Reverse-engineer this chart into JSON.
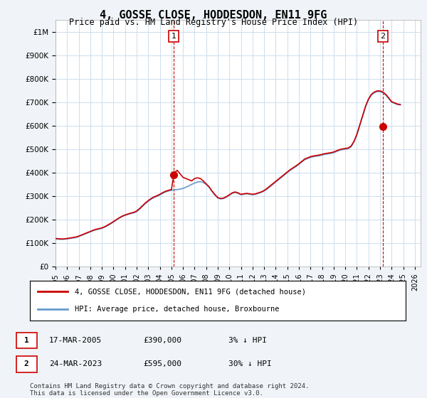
{
  "title": "4, GOSSE CLOSE, HODDESDON, EN11 9FG",
  "subtitle": "Price paid vs. HM Land Registry's House Price Index (HPI)",
  "ylabel_ticks": [
    "£0",
    "£100K",
    "£200K",
    "£300K",
    "£400K",
    "£500K",
    "£600K",
    "£700K",
    "£800K",
    "£900K",
    "£1M"
  ],
  "ytick_values": [
    0,
    100000,
    200000,
    300000,
    400000,
    500000,
    600000,
    700000,
    800000,
    900000,
    1000000
  ],
  "ylim": [
    0,
    1050000
  ],
  "xlim_start": 1995.0,
  "xlim_end": 2026.5,
  "xtick_years": [
    1995,
    1996,
    1997,
    1998,
    1999,
    2000,
    2001,
    2002,
    2003,
    2004,
    2005,
    2006,
    2007,
    2008,
    2009,
    2010,
    2011,
    2012,
    2013,
    2014,
    2015,
    2016,
    2017,
    2018,
    2019,
    2020,
    2021,
    2022,
    2023,
    2024,
    2025,
    2026
  ],
  "hpi_color": "#6699cc",
  "price_color": "#cc0000",
  "grid_color": "#ccddee",
  "background_color": "#f0f4f8",
  "plot_bg_color": "#ffffff",
  "sale1_year": 2005.21,
  "sale1_price": 390000,
  "sale2_year": 2023.23,
  "sale2_price": 595000,
  "legend_label1": "4, GOSSE CLOSE, HODDESDON, EN11 9FG (detached house)",
  "legend_label2": "HPI: Average price, detached house, Broxbourne",
  "table_row1": [
    "1",
    "17-MAR-2005",
    "£390,000",
    "3% ↓ HPI"
  ],
  "table_row2": [
    "2",
    "24-MAR-2023",
    "£595,000",
    "30% ↓ HPI"
  ],
  "footnote": "Contains HM Land Registry data © Crown copyright and database right 2024.\nThis data is licensed under the Open Government Licence v3.0.",
  "hpi_years": [
    1995.0,
    1995.25,
    1995.5,
    1995.75,
    1996.0,
    1996.25,
    1996.5,
    1996.75,
    1997.0,
    1997.25,
    1997.5,
    1997.75,
    1998.0,
    1998.25,
    1998.5,
    1998.75,
    1999.0,
    1999.25,
    1999.5,
    1999.75,
    2000.0,
    2000.25,
    2000.5,
    2000.75,
    2001.0,
    2001.25,
    2001.5,
    2001.75,
    2002.0,
    2002.25,
    2002.5,
    2002.75,
    2003.0,
    2003.25,
    2003.5,
    2003.75,
    2004.0,
    2004.25,
    2004.5,
    2004.75,
    2005.0,
    2005.25,
    2005.5,
    2005.75,
    2006.0,
    2006.25,
    2006.5,
    2006.75,
    2007.0,
    2007.25,
    2007.5,
    2007.75,
    2008.0,
    2008.25,
    2008.5,
    2008.75,
    2009.0,
    2009.25,
    2009.5,
    2009.75,
    2010.0,
    2010.25,
    2010.5,
    2010.75,
    2011.0,
    2011.25,
    2011.5,
    2011.75,
    2012.0,
    2012.25,
    2012.5,
    2012.75,
    2013.0,
    2013.25,
    2013.5,
    2013.75,
    2014.0,
    2014.25,
    2014.5,
    2014.75,
    2015.0,
    2015.25,
    2015.5,
    2015.75,
    2016.0,
    2016.25,
    2016.5,
    2016.75,
    2017.0,
    2017.25,
    2017.5,
    2017.75,
    2018.0,
    2018.25,
    2018.5,
    2018.75,
    2019.0,
    2019.25,
    2019.5,
    2019.75,
    2020.0,
    2020.25,
    2020.5,
    2020.75,
    2021.0,
    2021.25,
    2021.5,
    2021.75,
    2022.0,
    2022.25,
    2022.5,
    2022.75,
    2023.0,
    2023.25,
    2023.5,
    2023.75,
    2024.0,
    2024.25,
    2024.5,
    2024.75
  ],
  "hpi_values": [
    118000,
    117000,
    116000,
    116500,
    118000,
    120000,
    122000,
    124000,
    128000,
    133000,
    138000,
    143000,
    148000,
    153000,
    157000,
    160000,
    163000,
    168000,
    175000,
    182000,
    190000,
    198000,
    206000,
    213000,
    218000,
    222000,
    226000,
    229000,
    234000,
    244000,
    256000,
    268000,
    278000,
    287000,
    294000,
    299000,
    305000,
    312000,
    318000,
    322000,
    325000,
    327000,
    328000,
    330000,
    333000,
    338000,
    344000,
    350000,
    356000,
    360000,
    362000,
    358000,
    350000,
    338000,
    320000,
    305000,
    292000,
    288000,
    290000,
    296000,
    304000,
    312000,
    316000,
    312000,
    306000,
    308000,
    310000,
    308000,
    306000,
    308000,
    312000,
    316000,
    322000,
    330000,
    340000,
    350000,
    360000,
    370000,
    380000,
    390000,
    400000,
    410000,
    418000,
    426000,
    435000,
    445000,
    455000,
    460000,
    465000,
    468000,
    470000,
    472000,
    475000,
    478000,
    480000,
    482000,
    485000,
    490000,
    495000,
    498000,
    500000,
    502000,
    510000,
    530000,
    560000,
    600000,
    640000,
    680000,
    710000,
    730000,
    740000,
    745000,
    745000,
    740000,
    730000,
    715000,
    700000,
    695000,
    690000,
    688000
  ],
  "price_line_years": [
    1995.0,
    1995.25,
    1995.5,
    1995.75,
    1996.0,
    1996.25,
    1996.5,
    1996.75,
    1997.0,
    1997.25,
    1997.5,
    1997.75,
    1998.0,
    1998.25,
    1998.5,
    1998.75,
    1999.0,
    1999.25,
    1999.5,
    1999.75,
    2000.0,
    2000.25,
    2000.5,
    2000.75,
    2001.0,
    2001.25,
    2001.5,
    2001.75,
    2002.0,
    2002.25,
    2002.5,
    2002.75,
    2003.0,
    2003.25,
    2003.5,
    2003.75,
    2004.0,
    2004.25,
    2004.5,
    2004.75,
    2005.0,
    2005.25,
    2005.5,
    2005.75,
    2006.0,
    2006.25,
    2006.5,
    2006.75,
    2007.0,
    2007.25,
    2007.5,
    2007.75,
    2008.0,
    2008.25,
    2008.5,
    2008.75,
    2009.0,
    2009.25,
    2009.5,
    2009.75,
    2010.0,
    2010.25,
    2010.5,
    2010.75,
    2011.0,
    2011.25,
    2011.5,
    2011.75,
    2012.0,
    2012.25,
    2012.5,
    2012.75,
    2013.0,
    2013.25,
    2013.5,
    2013.75,
    2014.0,
    2014.25,
    2014.5,
    2014.75,
    2015.0,
    2015.25,
    2015.5,
    2015.75,
    2016.0,
    2016.25,
    2016.5,
    2016.75,
    2017.0,
    2017.25,
    2017.5,
    2017.75,
    2018.0,
    2018.25,
    2018.5,
    2018.75,
    2019.0,
    2019.25,
    2019.5,
    2019.75,
    2020.0,
    2020.25,
    2020.5,
    2020.75,
    2021.0,
    2021.25,
    2021.5,
    2021.75,
    2022.0,
    2022.25,
    2022.5,
    2022.75,
    2023.0,
    2023.25,
    2023.5,
    2023.75,
    2024.0,
    2024.25,
    2024.5,
    2024.75
  ],
  "price_line_values": [
    120000,
    119000,
    118000,
    118500,
    120000,
    122000,
    124000,
    126000,
    130000,
    135000,
    140000,
    145000,
    150000,
    155000,
    159000,
    162000,
    165000,
    170000,
    177000,
    184000,
    192000,
    200000,
    208000,
    215000,
    220000,
    224000,
    228000,
    231000,
    237000,
    247000,
    259000,
    271000,
    281000,
    290000,
    297000,
    302000,
    308000,
    315000,
    321000,
    325000,
    328000,
    400000,
    410000,
    395000,
    380000,
    375000,
    370000,
    365000,
    375000,
    378000,
    375000,
    365000,
    352000,
    340000,
    322000,
    307000,
    294000,
    290000,
    292000,
    298000,
    306000,
    314000,
    318000,
    314000,
    308000,
    310000,
    312000,
    310000,
    308000,
    310000,
    314000,
    318000,
    324000,
    333000,
    343000,
    353000,
    363000,
    373000,
    383000,
    393000,
    403000,
    413000,
    421000,
    429000,
    438000,
    448000,
    458000,
    463000,
    468000,
    471000,
    473000,
    475000,
    478000,
    481000,
    483000,
    485000,
    488000,
    493000,
    498000,
    501000,
    503000,
    505000,
    513000,
    533000,
    563000,
    603000,
    643000,
    683000,
    713000,
    733000,
    743000,
    748000,
    748000,
    743000,
    733000,
    718000,
    702000,
    697000,
    692000,
    690000
  ]
}
